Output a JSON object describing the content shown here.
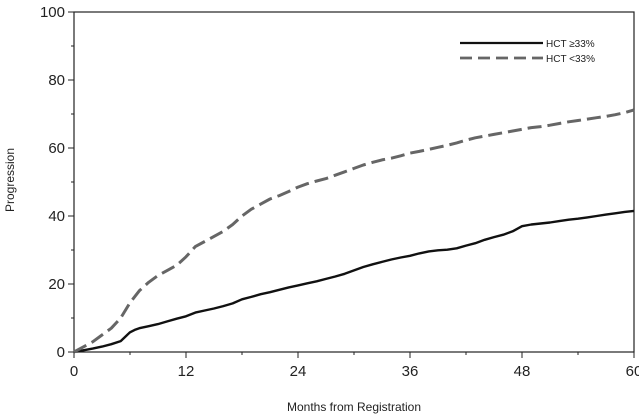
{
  "chart_data": {
    "type": "line",
    "xlabel": "Months from Registration",
    "ylabel": "Progression",
    "xlim": [
      0,
      60
    ],
    "ylim": [
      0,
      100
    ],
    "x_ticks": [
      0,
      12,
      24,
      36,
      48,
      60
    ],
    "y_ticks": [
      0,
      20,
      40,
      60,
      80,
      100
    ],
    "grid": false,
    "legend_placement": "top-right",
    "series": [
      {
        "name": "HCT ≥33%",
        "style": "solid",
        "color": "#111111",
        "x": [
          0,
          1,
          2,
          3,
          4,
          5,
          5.5,
          6,
          6.5,
          7,
          8,
          9,
          10,
          11,
          12,
          13,
          14,
          15,
          16,
          17,
          18,
          19,
          20,
          21,
          22,
          23,
          24,
          25,
          26,
          27,
          28,
          29,
          30,
          31,
          32,
          33,
          34,
          35,
          36,
          37,
          38,
          39,
          40,
          41,
          42,
          43,
          44,
          45,
          46,
          47,
          48,
          49,
          50,
          51,
          52,
          53,
          54,
          55,
          56,
          57,
          58,
          59,
          60
        ],
        "values": [
          0,
          0.5,
          1.0,
          1.6,
          2.3,
          3.2,
          4.5,
          5.8,
          6.5,
          7.0,
          7.6,
          8.2,
          9.0,
          9.8,
          10.5,
          11.6,
          12.2,
          12.8,
          13.5,
          14.3,
          15.5,
          16.2,
          17.0,
          17.6,
          18.3,
          19.0,
          19.6,
          20.2,
          20.8,
          21.5,
          22.2,
          23.0,
          24.0,
          25.0,
          25.8,
          26.5,
          27.2,
          27.8,
          28.3,
          29.0,
          29.6,
          29.9,
          30.1,
          30.5,
          31.3,
          32.0,
          33.0,
          33.8,
          34.5,
          35.5,
          37.0,
          37.5,
          37.8,
          38.1,
          38.5,
          38.9,
          39.2,
          39.6,
          40.0,
          40.4,
          40.8,
          41.2,
          41.5
        ]
      },
      {
        "name": "HCT <33%",
        "style": "dashed",
        "color": "#666666",
        "x": [
          0,
          1,
          2,
          3,
          4,
          5,
          6,
          7,
          8,
          9,
          10,
          11,
          12,
          13,
          14,
          15,
          16,
          17,
          18,
          19,
          20,
          21,
          22,
          23,
          24,
          25,
          26,
          27,
          28,
          29,
          30,
          31,
          32,
          33,
          34,
          35,
          36,
          37,
          38,
          39,
          40,
          41,
          42,
          43,
          44,
          45,
          46,
          47,
          48,
          49,
          50,
          51,
          52,
          53,
          54,
          55,
          56,
          57,
          58,
          59,
          60
        ],
        "values": [
          0,
          1.5,
          3.0,
          5.0,
          7.0,
          10.0,
          14.5,
          18.0,
          20.5,
          22.5,
          24.0,
          25.5,
          28.0,
          31.0,
          32.5,
          34.0,
          35.5,
          37.5,
          40.0,
          42.0,
          43.5,
          45.0,
          46.0,
          47.2,
          48.5,
          49.5,
          50.3,
          51.0,
          52.0,
          53.0,
          54.0,
          55.0,
          55.8,
          56.5,
          57.0,
          57.7,
          58.5,
          59.0,
          59.6,
          60.2,
          60.8,
          61.5,
          62.3,
          63.0,
          63.5,
          64.0,
          64.5,
          65.0,
          65.5,
          66.0,
          66.3,
          66.7,
          67.2,
          67.7,
          68.1,
          68.5,
          68.9,
          69.3,
          69.8,
          70.4,
          71.2
        ]
      }
    ]
  }
}
